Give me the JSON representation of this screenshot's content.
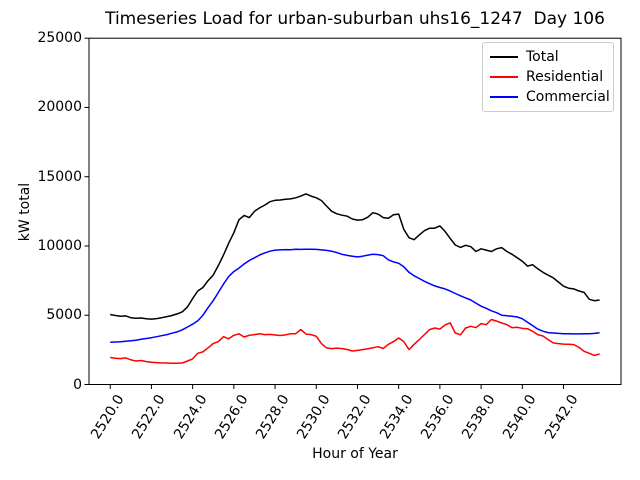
{
  "chart_data": {
    "type": "line",
    "title": "Timeseries Load for urban-suburban uhs16_1247  Day 106",
    "xlabel": "Hour of Year",
    "ylabel": "kW total",
    "xlim": [
      2518.97,
      2544.79
    ],
    "ylim": [
      0,
      25000
    ],
    "grid": false,
    "legend": {
      "position": "upper right"
    },
    "x_ticks": [
      {
        "value": 2520,
        "label": "2520.0"
      },
      {
        "value": 2522,
        "label": "2522.0"
      },
      {
        "value": 2524,
        "label": "2524.0"
      },
      {
        "value": 2526,
        "label": "2526.0"
      },
      {
        "value": 2528,
        "label": "2528.0"
      },
      {
        "value": 2530,
        "label": "2530.0"
      },
      {
        "value": 2532,
        "label": "2532.0"
      },
      {
        "value": 2534,
        "label": "2534.0"
      },
      {
        "value": 2536,
        "label": "2536.0"
      },
      {
        "value": 2538,
        "label": "2538.0"
      },
      {
        "value": 2540,
        "label": "2540.0"
      },
      {
        "value": 2542,
        "label": "2542.0"
      }
    ],
    "y_ticks": [
      {
        "value": 0,
        "label": "0"
      },
      {
        "value": 5000,
        "label": "5000"
      },
      {
        "value": 10000,
        "label": "10000"
      },
      {
        "value": 15000,
        "label": "15000"
      },
      {
        "value": 20000,
        "label": "20000"
      },
      {
        "value": 25000,
        "label": "25000"
      }
    ],
    "x_start": 2520,
    "x_step": 0.25,
    "series": [
      {
        "name": "Total",
        "color": "#000000",
        "values": [
          5050,
          4980,
          4920,
          4950,
          4820,
          4780,
          4800,
          4740,
          4720,
          4760,
          4820,
          4900,
          4980,
          5100,
          5250,
          5600,
          6200,
          6750,
          7000,
          7500,
          7900,
          8600,
          9350,
          10200,
          10950,
          11900,
          12200,
          12050,
          12500,
          12750,
          12950,
          13200,
          13300,
          13320,
          13380,
          13400,
          13480,
          13600,
          13760,
          13600,
          13480,
          13280,
          12880,
          12500,
          12320,
          12220,
          12150,
          11950,
          11870,
          11900,
          12080,
          12400,
          12300,
          12050,
          12000,
          12250,
          12300,
          11200,
          10600,
          10450,
          10800,
          11100,
          11280,
          11280,
          11450,
          11050,
          10550,
          10070,
          9900,
          10050,
          9950,
          9600,
          9800,
          9700,
          9600,
          9800,
          9880,
          9600,
          9400,
          9150,
          8900,
          8550,
          8650,
          8350,
          8100,
          7900,
          7700,
          7400,
          7100,
          6950,
          6900,
          6750,
          6650,
          6150,
          6050,
          6100
        ]
      },
      {
        "name": "Residential",
        "color": "#ff0000",
        "values": [
          1950,
          1900,
          1870,
          1920,
          1780,
          1700,
          1730,
          1650,
          1600,
          1580,
          1560,
          1550,
          1540,
          1540,
          1550,
          1700,
          1850,
          2250,
          2350,
          2650,
          2950,
          3100,
          3450,
          3300,
          3550,
          3650,
          3430,
          3550,
          3600,
          3670,
          3600,
          3620,
          3570,
          3540,
          3580,
          3660,
          3670,
          3960,
          3640,
          3600,
          3480,
          2950,
          2640,
          2590,
          2630,
          2590,
          2530,
          2420,
          2460,
          2520,
          2585,
          2650,
          2730,
          2600,
          2900,
          3100,
          3360,
          3100,
          2520,
          2900,
          3240,
          3600,
          3960,
          4080,
          4000,
          4300,
          4450,
          3720,
          3590,
          4080,
          4200,
          4100,
          4400,
          4320,
          4690,
          4580,
          4440,
          4320,
          4100,
          4130,
          4050,
          4030,
          3840,
          3600,
          3500,
          3240,
          3000,
          2950,
          2920,
          2900,
          2880,
          2680,
          2400,
          2250,
          2100,
          2200
        ]
      },
      {
        "name": "Commercial",
        "color": "#0000ff",
        "values": [
          3050,
          3070,
          3080,
          3120,
          3160,
          3200,
          3260,
          3320,
          3380,
          3450,
          3520,
          3600,
          3700,
          3800,
          3950,
          4150,
          4350,
          4600,
          5000,
          5550,
          6050,
          6650,
          7250,
          7800,
          8150,
          8400,
          8700,
          8950,
          9150,
          9350,
          9500,
          9620,
          9700,
          9720,
          9740,
          9730,
          9760,
          9750,
          9770,
          9760,
          9750,
          9720,
          9680,
          9620,
          9520,
          9400,
          9320,
          9260,
          9210,
          9260,
          9340,
          9400,
          9380,
          9300,
          9000,
          8850,
          8750,
          8500,
          8100,
          7850,
          7650,
          7450,
          7280,
          7120,
          7000,
          6900,
          6750,
          6570,
          6400,
          6250,
          6100,
          5880,
          5650,
          5500,
          5320,
          5180,
          5000,
          4960,
          4930,
          4870,
          4750,
          4500,
          4250,
          4000,
          3850,
          3750,
          3720,
          3690,
          3670,
          3660,
          3650,
          3650,
          3660,
          3670,
          3690,
          3730
        ]
      }
    ]
  }
}
